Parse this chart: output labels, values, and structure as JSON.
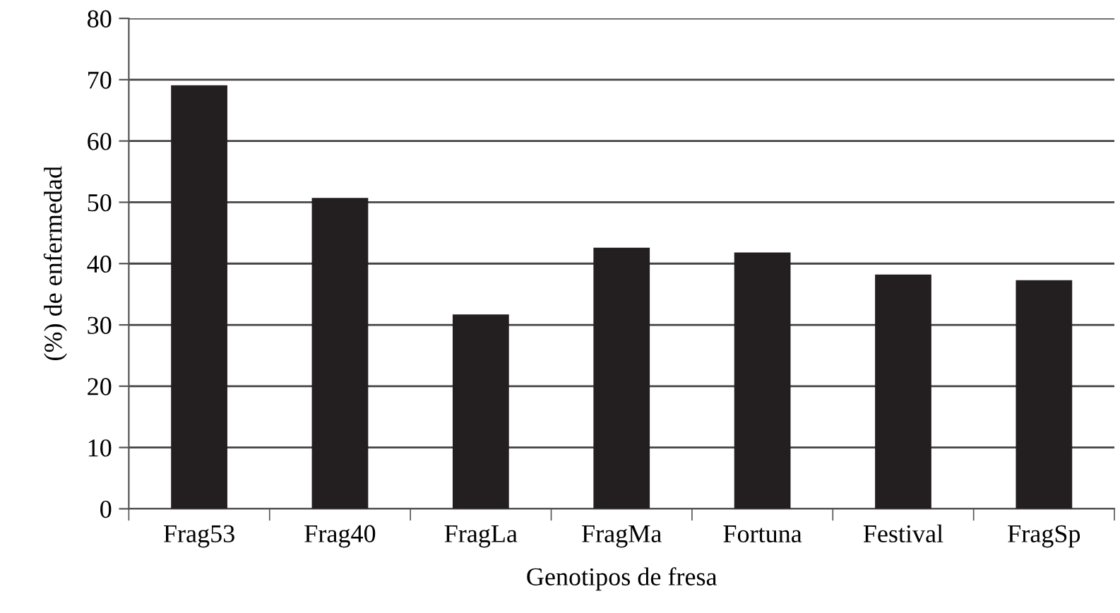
{
  "chart_data": {
    "type": "bar",
    "xlabel": "Genotipos de fresa",
    "ylabel": "(%) de enfermedad",
    "categories": [
      "Frag53",
      "Frag40",
      "FragLa",
      "FragMa",
      "Fortuna",
      "Festival",
      "FragSp"
    ],
    "values": [
      69.1,
      50.7,
      31.7,
      42.6,
      41.8,
      38.2,
      37.3
    ],
    "color": "#231f20",
    "ylim": [
      0,
      80
    ],
    "yticks": [
      0,
      10,
      20,
      30,
      40,
      50,
      60,
      70,
      80
    ],
    "grid": "y"
  }
}
